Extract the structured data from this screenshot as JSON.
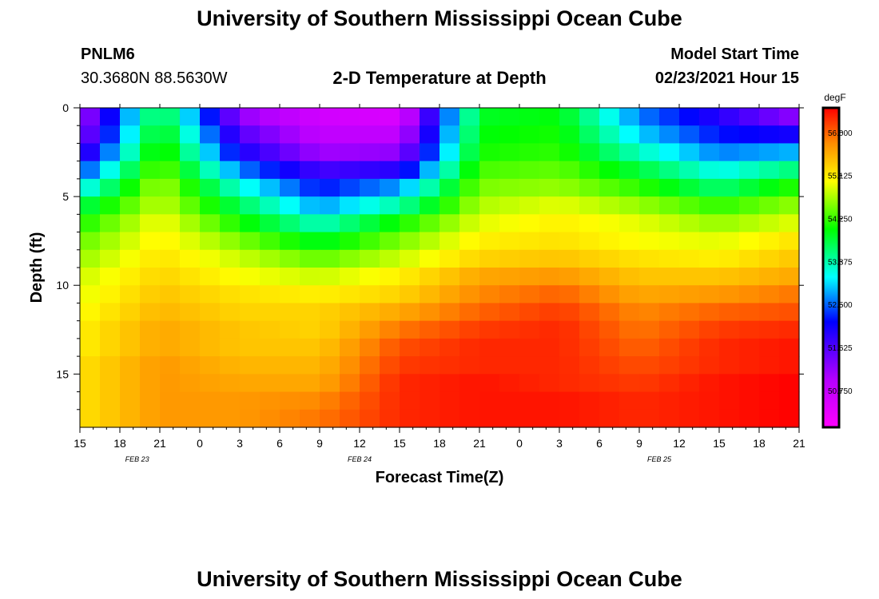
{
  "header": {
    "title": "University of Southern Mississippi Ocean Cube",
    "station_id": "PNLM6",
    "coordinates": "30.3680N 88.5630W",
    "plot_title": "2-D Temperature at Depth",
    "model_start_label": "Model Start Time",
    "model_start_value": "02/23/2021 Hour 15"
  },
  "footer": {
    "title": "University of Southern Mississippi Ocean Cube"
  },
  "chart_data": {
    "type": "heatmap",
    "title": "2-D Temperature at Depth",
    "xlabel": "Forecast Time(Z)",
    "ylabel": "Depth (ft)",
    "x_tick_labels": [
      "15",
      "18",
      "21",
      "0",
      "3",
      "6",
      "9",
      "12",
      "15",
      "18",
      "21",
      "0",
      "3",
      "6",
      "9",
      "12",
      "15",
      "18",
      "21"
    ],
    "x_range_hours": [
      0,
      54
    ],
    "date_labels": [
      {
        "label": "FEB 23",
        "hour": 4.3
      },
      {
        "label": "FEB 24",
        "hour": 21
      },
      {
        "label": "FEB 25",
        "hour": 43.5
      }
    ],
    "y_ticks": [
      0,
      5,
      10,
      15
    ],
    "ylim": [
      0,
      18
    ],
    "y_inverted": true,
    "colorbar": {
      "unit": "degF",
      "ticks": [
        "56.000",
        "55.125",
        "54.250",
        "53.375",
        "52.500",
        "51.625",
        "50.750"
      ],
      "range": [
        50.0,
        56.5
      ]
    },
    "depth_levels_ft": [
      0.4,
      1.5,
      2.6,
      3.6,
      4.6,
      5.6,
      6.6,
      7.6,
      8.6,
      9.6,
      10.6,
      11.6,
      12.6,
      13.6,
      14.6,
      15.6,
      16.6,
      17.6
    ],
    "time_hours": [
      0,
      6,
      12,
      18,
      24,
      30,
      36,
      42,
      48,
      54
    ],
    "temperature_degF": [
      [
        51.0,
        53.9,
        51.2,
        50.6,
        50.5,
        53.9,
        54.0,
        52.6,
        51.9,
        51.2
      ],
      [
        51.2,
        54.1,
        51.6,
        50.8,
        50.8,
        54.0,
        54.1,
        52.9,
        52.2,
        52.0
      ],
      [
        51.6,
        54.3,
        52.0,
        51.1,
        51.2,
        54.1,
        54.2,
        53.3,
        52.6,
        52.8
      ],
      [
        52.3,
        54.5,
        52.6,
        51.7,
        51.9,
        54.3,
        54.4,
        53.8,
        53.1,
        53.6
      ],
      [
        53.0,
        54.7,
        53.2,
        52.2,
        52.7,
        54.5,
        54.6,
        54.2,
        53.6,
        54.2
      ],
      [
        53.7,
        54.8,
        53.7,
        52.7,
        53.4,
        54.7,
        54.9,
        54.6,
        54.2,
        54.6
      ],
      [
        54.1,
        55.0,
        54.1,
        53.3,
        54.1,
        54.9,
        55.1,
        54.9,
        54.6,
        54.9
      ],
      [
        54.4,
        55.1,
        54.5,
        53.9,
        54.5,
        55.1,
        55.2,
        55.0,
        54.9,
        55.2
      ],
      [
        54.6,
        55.2,
        54.8,
        54.4,
        54.8,
        55.3,
        55.4,
        55.2,
        55.1,
        55.4
      ],
      [
        54.8,
        55.3,
        55.0,
        54.8,
        55.1,
        55.6,
        55.7,
        55.4,
        55.4,
        55.6
      ],
      [
        54.9,
        55.4,
        55.2,
        55.1,
        55.3,
        55.8,
        56.0,
        55.6,
        55.7,
        55.9
      ],
      [
        55.0,
        55.5,
        55.3,
        55.3,
        55.6,
        56.0,
        56.2,
        55.8,
        56.0,
        56.1
      ],
      [
        55.1,
        55.6,
        55.4,
        55.3,
        55.9,
        56.2,
        56.3,
        55.9,
        56.2,
        56.3
      ],
      [
        55.1,
        55.6,
        55.4,
        55.4,
        56.1,
        56.3,
        56.3,
        56.0,
        56.3,
        56.4
      ],
      [
        55.2,
        55.7,
        55.5,
        55.5,
        56.2,
        56.3,
        56.3,
        56.1,
        56.3,
        56.4
      ],
      [
        55.2,
        55.7,
        55.6,
        55.6,
        56.3,
        56.4,
        56.3,
        56.2,
        56.4,
        56.5
      ],
      [
        55.2,
        55.7,
        55.7,
        55.8,
        56.3,
        56.4,
        56.4,
        56.3,
        56.4,
        56.5
      ],
      [
        55.2,
        55.7,
        55.7,
        55.9,
        56.3,
        56.4,
        56.4,
        56.3,
        56.4,
        56.5
      ]
    ]
  }
}
